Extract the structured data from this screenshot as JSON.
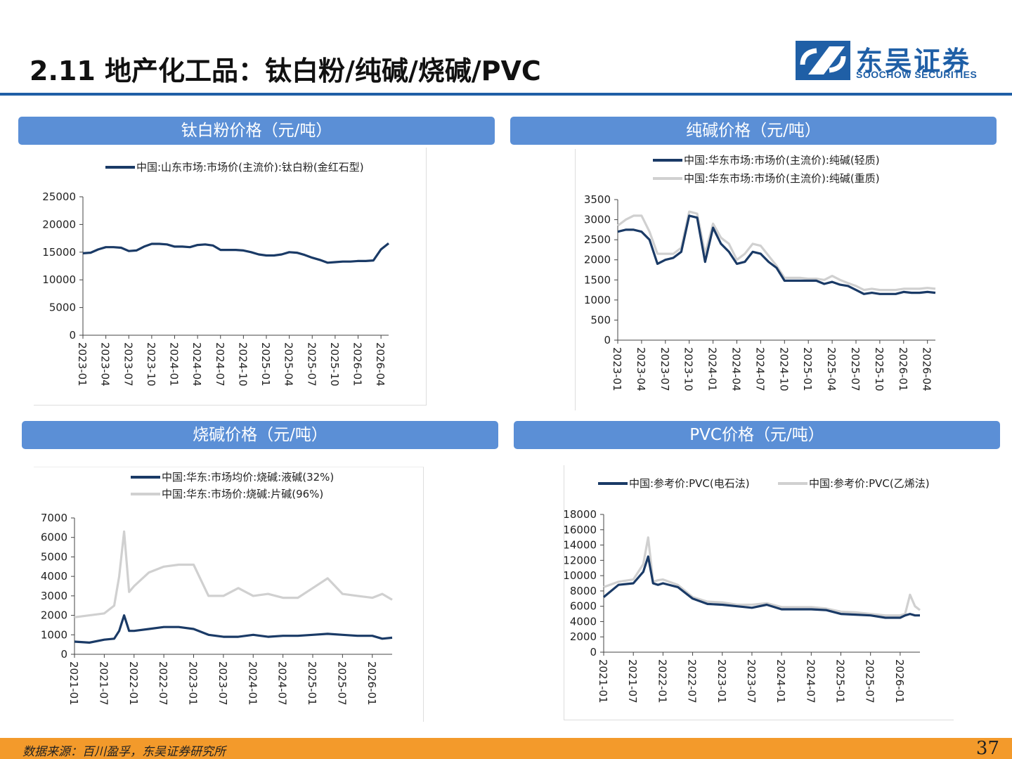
{
  "header": {
    "title": "2.11 地产化工品：钛白粉/纯碱/烧碱/PVC",
    "logo_cn": "东吴证券",
    "logo_en": "SOOCHOW SECURITIES",
    "brand_color": "#1f5fa6"
  },
  "panels": [
    {
      "title": "钛白粉价格（元/吨）"
    },
    {
      "title": "纯碱价格（元/吨）"
    },
    {
      "title": "烧碱价格（元/吨）"
    },
    {
      "title": "PVC价格（元/吨）"
    }
  ],
  "footer": {
    "source": "数据来源：百川盈孚，东吴证券研究所",
    "page": "37"
  },
  "chart_data": [
    {
      "type": "line",
      "title": "钛白粉价格（元/吨）",
      "ylim": [
        0,
        25000
      ],
      "yticks": [
        "0",
        "5000",
        "10000",
        "15000",
        "20000",
        "25000"
      ],
      "xlim": [
        "2023-01",
        "2026-05"
      ],
      "xticks": [
        "2023-01",
        "2023-04",
        "2023-07",
        "2023-10",
        "2024-01",
        "2024-04",
        "2024-07",
        "2024-10",
        "2025-01",
        "2025-04",
        "2025-07",
        "2025-10",
        "2026-01",
        "2026-04"
      ],
      "legend": "top",
      "series": [
        {
          "name": "中国:山东市场:市场价(主流价):钛白粉(金红石型)",
          "color": "#1a3a66",
          "x": [
            "2023-01",
            "2023-02",
            "2023-03",
            "2023-04",
            "2023-05",
            "2023-06",
            "2023-07",
            "2023-08",
            "2023-09",
            "2023-10",
            "2023-11",
            "2023-12",
            "2024-01",
            "2024-02",
            "2024-03",
            "2024-04",
            "2024-05",
            "2024-06",
            "2024-07",
            "2024-08",
            "2024-09",
            "2024-10",
            "2024-11",
            "2024-12",
            "2025-01",
            "2025-02",
            "2025-03",
            "2025-04",
            "2025-05",
            "2025-06",
            "2025-07",
            "2025-08",
            "2025-09",
            "2025-10",
            "2025-11",
            "2025-12",
            "2026-01",
            "2026-02",
            "2026-03",
            "2026-04",
            "2026-05"
          ],
          "y": [
            14800,
            14900,
            15500,
            15900,
            15900,
            15800,
            15200,
            15300,
            16000,
            16500,
            16500,
            16400,
            16000,
            16000,
            15900,
            16300,
            16400,
            16200,
            15400,
            15400,
            15400,
            15300,
            15000,
            14600,
            14400,
            14400,
            14600,
            15000,
            14900,
            14500,
            14000,
            13600,
            13100,
            13200,
            13300,
            13300,
            13400,
            13400,
            13500,
            15500,
            16600
          ]
        }
      ]
    },
    {
      "type": "line",
      "title": "纯碱价格（元/吨）",
      "ylim": [
        0,
        3500
      ],
      "yticks": [
        "0",
        "500",
        "1000",
        "1500",
        "2000",
        "2500",
        "3000",
        "3500"
      ],
      "xlim": [
        "2023-01",
        "2026-05"
      ],
      "xticks": [
        "2023-01",
        "2023-04",
        "2023-07",
        "2023-10",
        "2024-01",
        "2024-04",
        "2024-07",
        "2024-10",
        "2025-01",
        "2025-04",
        "2025-07",
        "2025-10",
        "2026-01",
        "2026-04"
      ],
      "legend": "top",
      "series": [
        {
          "name": "中国:华东市场:市场价(主流价):纯碱(轻质)",
          "color": "#1a3a66",
          "x": [
            "2023-01",
            "2023-02",
            "2023-03",
            "2023-04",
            "2023-05",
            "2023-06",
            "2023-07",
            "2023-08",
            "2023-09",
            "2023-10",
            "2023-11",
            "2023-12",
            "2024-01",
            "2024-02",
            "2024-03",
            "2024-04",
            "2024-05",
            "2024-06",
            "2024-07",
            "2024-08",
            "2024-09",
            "2024-10",
            "2024-11",
            "2024-12",
            "2025-01",
            "2025-02",
            "2025-03",
            "2025-04",
            "2025-05",
            "2025-06",
            "2025-07",
            "2025-08",
            "2025-09",
            "2025-10",
            "2025-11",
            "2025-12",
            "2026-01",
            "2026-02",
            "2026-03",
            "2026-04",
            "2026-05"
          ],
          "y": [
            2700,
            2750,
            2750,
            2700,
            2500,
            1900,
            2000,
            2050,
            2200,
            3100,
            3050,
            1950,
            2800,
            2400,
            2200,
            1900,
            1950,
            2200,
            2150,
            1950,
            1800,
            1480,
            1480,
            1480,
            1480,
            1480,
            1400,
            1450,
            1380,
            1350,
            1250,
            1150,
            1180,
            1150,
            1150,
            1150,
            1200,
            1180,
            1180,
            1200,
            1180
          ]
        },
        {
          "name": "中国:华东市场:市场价(主流价):纯碱(重质)",
          "color": "#d0d0d0",
          "x": [
            "2023-01",
            "2023-02",
            "2023-03",
            "2023-04",
            "2023-05",
            "2023-06",
            "2023-07",
            "2023-08",
            "2023-09",
            "2023-10",
            "2023-11",
            "2023-12",
            "2024-01",
            "2024-02",
            "2024-03",
            "2024-04",
            "2024-05",
            "2024-06",
            "2024-07",
            "2024-08",
            "2024-09",
            "2024-10",
            "2024-11",
            "2024-12",
            "2025-01",
            "2025-02",
            "2025-03",
            "2025-04",
            "2025-05",
            "2025-06",
            "2025-07",
            "2025-08",
            "2025-09",
            "2025-10",
            "2025-11",
            "2025-12",
            "2026-01",
            "2026-02",
            "2026-03",
            "2026-04",
            "2026-05"
          ],
          "y": [
            2850,
            3000,
            3100,
            3100,
            2700,
            2150,
            2150,
            2150,
            2300,
            3200,
            3150,
            2150,
            2900,
            2550,
            2400,
            2000,
            2150,
            2400,
            2350,
            2100,
            1850,
            1550,
            1550,
            1550,
            1530,
            1530,
            1500,
            1600,
            1500,
            1420,
            1350,
            1250,
            1280,
            1250,
            1250,
            1250,
            1280,
            1280,
            1280,
            1300,
            1280
          ]
        }
      ]
    },
    {
      "type": "line",
      "title": "烧碱价格（元/吨）",
      "ylim": [
        0,
        7000
      ],
      "yticks": [
        "0",
        "1000",
        "2000",
        "3000",
        "4000",
        "5000",
        "6000",
        "7000"
      ],
      "xlim": [
        "2021-01",
        "2026-05"
      ],
      "xticks": [
        "2021-01",
        "2021-07",
        "2022-01",
        "2022-07",
        "2023-01",
        "2023-07",
        "2024-01",
        "2024-07",
        "2025-01",
        "2025-07",
        "2026-01"
      ],
      "legend": "top",
      "series": [
        {
          "name": "中国:华东:市场均价:烧碱:液碱(32%)",
          "color": "#1a3a66",
          "x": [
            "2021-01",
            "2021-04",
            "2021-07",
            "2021-09",
            "2021-10",
            "2021-11",
            "2021-12",
            "2022-01",
            "2022-04",
            "2022-07",
            "2022-10",
            "2023-01",
            "2023-04",
            "2023-07",
            "2023-10",
            "2024-01",
            "2024-04",
            "2024-07",
            "2024-10",
            "2025-01",
            "2025-04",
            "2025-07",
            "2025-10",
            "2026-01",
            "2026-03",
            "2026-05"
          ],
          "y": [
            650,
            600,
            750,
            800,
            1200,
            2000,
            1200,
            1200,
            1300,
            1400,
            1400,
            1300,
            1000,
            900,
            900,
            1000,
            900,
            950,
            950,
            1000,
            1050,
            1000,
            950,
            950,
            800,
            850
          ]
        },
        {
          "name": "中国:华东:市场价:烧碱:片碱(96%)",
          "color": "#d0d0d0",
          "x": [
            "2021-01",
            "2021-04",
            "2021-07",
            "2021-09",
            "2021-10",
            "2021-11",
            "2021-12",
            "2022-01",
            "2022-04",
            "2022-07",
            "2022-10",
            "2023-01",
            "2023-04",
            "2023-07",
            "2023-10",
            "2024-01",
            "2024-04",
            "2024-07",
            "2024-10",
            "2025-01",
            "2025-04",
            "2025-07",
            "2025-10",
            "2026-01",
            "2026-03",
            "2026-05"
          ],
          "y": [
            1900,
            2000,
            2100,
            2500,
            4000,
            6300,
            3200,
            3500,
            4200,
            4500,
            4600,
            4600,
            3000,
            3000,
            3400,
            3000,
            3100,
            2900,
            2900,
            3400,
            3900,
            3100,
            3000,
            2900,
            3100,
            2800
          ]
        }
      ]
    },
    {
      "type": "line",
      "title": "PVC价格（元/吨）",
      "ylim": [
        0,
        18000
      ],
      "yticks": [
        "0",
        "2000",
        "4000",
        "6000",
        "8000",
        "10000",
        "12000",
        "14000",
        "16000",
        "18000"
      ],
      "xlim": [
        "2021-01",
        "2026-05"
      ],
      "xticks": [
        "2021-01",
        "2021-07",
        "2022-01",
        "2022-07",
        "2023-01",
        "2023-07",
        "2024-01",
        "2024-07",
        "2025-01",
        "2025-07",
        "2026-01"
      ],
      "legend": "top",
      "series": [
        {
          "name": "中国:参考价:PVC(电石法)",
          "color": "#1a3a66",
          "x": [
            "2021-01",
            "2021-04",
            "2021-07",
            "2021-09",
            "2021-10",
            "2021-11",
            "2021-12",
            "2022-01",
            "2022-04",
            "2022-07",
            "2022-10",
            "2023-01",
            "2023-04",
            "2023-07",
            "2023-10",
            "2024-01",
            "2024-04",
            "2024-07",
            "2024-10",
            "2025-01",
            "2025-04",
            "2025-07",
            "2025-10",
            "2026-01",
            "2026-02",
            "2026-03",
            "2026-04",
            "2026-05"
          ],
          "y": [
            7200,
            8800,
            9000,
            10500,
            12500,
            9000,
            8800,
            9000,
            8500,
            7000,
            6300,
            6200,
            6000,
            5800,
            6200,
            5600,
            5600,
            5600,
            5500,
            5000,
            4900,
            4800,
            4500,
            4500,
            4800,
            5000,
            4800,
            4800
          ]
        },
        {
          "name": "中国:参考价:PVC(乙烯法)",
          "color": "#d0d0d0",
          "x": [
            "2021-01",
            "2021-04",
            "2021-07",
            "2021-09",
            "2021-10",
            "2021-11",
            "2021-12",
            "2022-01",
            "2022-04",
            "2022-07",
            "2022-10",
            "2023-01",
            "2023-04",
            "2023-07",
            "2023-10",
            "2024-01",
            "2024-04",
            "2024-07",
            "2024-10",
            "2025-01",
            "2025-04",
            "2025-07",
            "2025-10",
            "2026-01",
            "2026-02",
            "2026-03",
            "2026-04",
            "2026-05"
          ],
          "y": [
            8500,
            9200,
            9500,
            11500,
            15000,
            9200,
            9400,
            9500,
            8800,
            7200,
            6600,
            6500,
            6200,
            6200,
            6400,
            5900,
            5900,
            5900,
            5700,
            5300,
            5200,
            5000,
            4800,
            4800,
            5000,
            7500,
            6000,
            5500
          ]
        }
      ]
    }
  ]
}
